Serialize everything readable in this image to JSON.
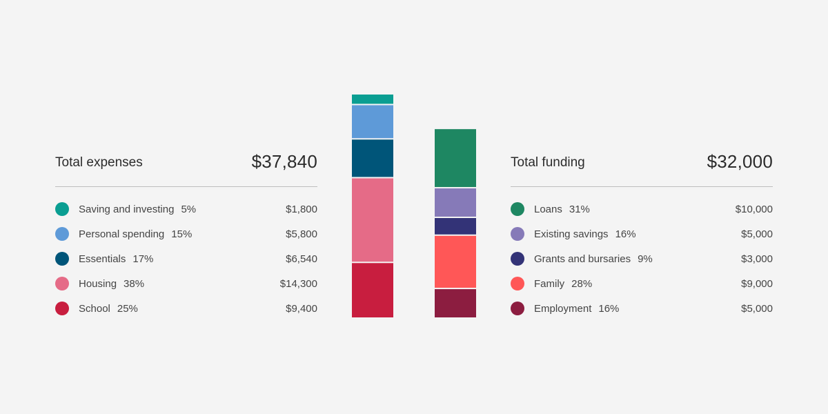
{
  "expenses": {
    "title": "Total expenses",
    "total": "$37,840",
    "items": [
      {
        "label": "Saving and investing",
        "pct": "5%",
        "value": "$1,800",
        "amount": 1800,
        "color": "#0a9e92"
      },
      {
        "label": "Personal spending",
        "pct": "15%",
        "value": "$5,800",
        "amount": 5800,
        "color": "#5e9ad8"
      },
      {
        "label": "Essentials",
        "pct": "17%",
        "value": "$6,540",
        "amount": 6540,
        "color": "#005579"
      },
      {
        "label": "Housing",
        "pct": "38%",
        "value": "$14,300",
        "amount": 14300,
        "color": "#e56b87"
      },
      {
        "label": "School",
        "pct": "25%",
        "value": "$9,400",
        "amount": 9400,
        "color": "#c81e3f"
      }
    ]
  },
  "funding": {
    "title": "Total funding",
    "total": "$32,000",
    "items": [
      {
        "label": "Loans",
        "pct": "31%",
        "value": "$10,000",
        "amount": 10000,
        "color": "#1e8762"
      },
      {
        "label": "Existing savings",
        "pct": "16%",
        "value": "$5,000",
        "amount": 5000,
        "color": "#867ab8"
      },
      {
        "label": "Grants and bursaries",
        "pct": "9%",
        "value": "$3,000",
        "amount": 3000,
        "color": "#333377"
      },
      {
        "label": "Family",
        "pct": "28%",
        "value": "$9,000",
        "amount": 9000,
        "color": "#ff5757"
      },
      {
        "label": "Employment",
        "pct": "16%",
        "value": "$5,000",
        "amount": 5000,
        "color": "#8c1d40"
      }
    ]
  },
  "chart_data": {
    "type": "bar",
    "stacked": true,
    "categories": [
      "Total expenses",
      "Total funding"
    ],
    "series": [
      {
        "name": "Saving and investing",
        "values": [
          1800,
          null
        ]
      },
      {
        "name": "Personal spending",
        "values": [
          5800,
          null
        ]
      },
      {
        "name": "Essentials",
        "values": [
          6540,
          null
        ]
      },
      {
        "name": "Housing",
        "values": [
          14300,
          null
        ]
      },
      {
        "name": "School",
        "values": [
          9400,
          null
        ]
      },
      {
        "name": "Loans",
        "values": [
          null,
          10000
        ]
      },
      {
        "name": "Existing savings",
        "values": [
          null,
          5000
        ]
      },
      {
        "name": "Grants and bursaries",
        "values": [
          null,
          3000
        ]
      },
      {
        "name": "Family",
        "values": [
          null,
          9000
        ]
      },
      {
        "name": "Employment",
        "values": [
          null,
          5000
        ]
      }
    ],
    "totals": [
      37840,
      32000
    ],
    "grid": false
  }
}
